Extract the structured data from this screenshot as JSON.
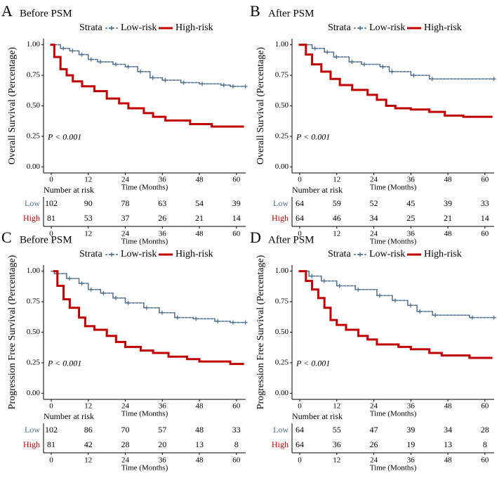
{
  "chart_data": [
    {
      "type": "line",
      "panel": "A",
      "title": "Before PSM",
      "legend_title": "Strata",
      "ylabel": "Overall Survival (Percentage)",
      "xlabel": "Time (Months)",
      "annotation": "P < 0.001",
      "xlim": [
        -2.5,
        63
      ],
      "xticks": [
        0,
        12,
        24,
        36,
        48,
        60
      ],
      "ylim": [
        -0.05,
        1.05
      ],
      "yticks": [
        {
          "value": 0,
          "label": "0.00"
        },
        {
          "value": 0.25,
          "label": "0.25"
        },
        {
          "value": 0.5,
          "label": "0.50"
        },
        {
          "value": 0.75,
          "label": "0.75"
        },
        {
          "value": 1,
          "label": "1.00"
        }
      ],
      "series": [
        {
          "name": "Low-risk",
          "color": "#4e6f8f",
          "x": [
            0,
            3,
            6,
            9,
            12,
            15,
            20,
            24,
            28,
            32,
            36,
            42,
            48,
            55,
            58,
            62
          ],
          "values": [
            1,
            0.97,
            0.95,
            0.92,
            0.88,
            0.86,
            0.84,
            0.82,
            0.78,
            0.73,
            0.71,
            0.69,
            0.68,
            0.67,
            0.66,
            0.66
          ]
        },
        {
          "name": "High-risk",
          "color": "#c00000",
          "x": [
            0,
            1,
            3,
            5,
            7,
            10,
            14,
            18,
            22,
            25,
            30,
            33,
            37,
            45,
            52,
            62
          ],
          "values": [
            1,
            0.9,
            0.8,
            0.75,
            0.7,
            0.66,
            0.62,
            0.56,
            0.52,
            0.48,
            0.44,
            0.41,
            0.38,
            0.35,
            0.33,
            0.33
          ]
        }
      ],
      "risk_table": {
        "title": "Number at risk",
        "rows": [
          {
            "name": "Low",
            "color": "#4e6f8f",
            "values": [
              102,
              90,
              78,
              63,
              54,
              39
            ]
          },
          {
            "name": "High",
            "color": "#c00000",
            "values": [
              81,
              53,
              37,
              26,
              21,
              14
            ]
          }
        ]
      }
    },
    {
      "type": "line",
      "panel": "B",
      "title": "After PSM",
      "legend_title": "Strata",
      "ylabel": "Overall Survival (Percentage)",
      "xlabel": "Time (Months)",
      "annotation": "P < 0.001",
      "xlim": [
        -2.5,
        63
      ],
      "xticks": [
        0,
        12,
        24,
        36,
        48,
        60
      ],
      "ylim": [
        -0.05,
        1.05
      ],
      "yticks": [
        {
          "value": 0,
          "label": "0.00"
        },
        {
          "value": 0.25,
          "label": "0.25"
        },
        {
          "value": 0.5,
          "label": "0.50"
        },
        {
          "value": 0.75,
          "label": "0.75"
        },
        {
          "value": 1,
          "label": "1.00"
        }
      ],
      "series": [
        {
          "name": "Low-risk",
          "color": "#4e6f8f",
          "x": [
            0,
            4,
            8,
            11,
            16,
            20,
            26,
            29,
            36,
            42,
            62
          ],
          "values": [
            1,
            0.97,
            0.94,
            0.9,
            0.86,
            0.84,
            0.82,
            0.78,
            0.75,
            0.72,
            0.72
          ]
        },
        {
          "name": "High-risk",
          "color": "#c00000",
          "x": [
            0,
            2,
            4,
            7,
            10,
            13,
            17,
            22,
            25,
            28,
            31,
            36,
            42,
            47,
            53,
            62
          ],
          "values": [
            1,
            0.92,
            0.84,
            0.78,
            0.72,
            0.67,
            0.63,
            0.59,
            0.55,
            0.5,
            0.48,
            0.47,
            0.45,
            0.42,
            0.41,
            0.41
          ]
        }
      ],
      "risk_table": {
        "title": "Number at risk",
        "rows": [
          {
            "name": "Low",
            "color": "#4e6f8f",
            "values": [
              64,
              59,
              52,
              45,
              39,
              33
            ]
          },
          {
            "name": "High",
            "color": "#c00000",
            "values": [
              64,
              46,
              34,
              25,
              21,
              14
            ]
          }
        ]
      }
    },
    {
      "type": "line",
      "panel": "C",
      "title": "Before PSM",
      "legend_title": "Strata",
      "ylabel": "Progression Free Survival (Percentage)",
      "xlabel": "Time (Months)",
      "annotation": "P < 0.001",
      "xlim": [
        -2.5,
        63
      ],
      "xticks": [
        0,
        12,
        24,
        36,
        48,
        60
      ],
      "ylim": [
        -0.05,
        1.05
      ],
      "yticks": [
        {
          "value": 0,
          "label": "0.00"
        },
        {
          "value": 0.25,
          "label": "0.25"
        },
        {
          "value": 0.5,
          "label": "0.50"
        },
        {
          "value": 0.75,
          "label": "0.75"
        },
        {
          "value": 1,
          "label": "1.00"
        }
      ],
      "series": [
        {
          "name": "Low-risk",
          "color": "#4e6f8f",
          "x": [
            0,
            1,
            5,
            9,
            12,
            16,
            20,
            24,
            30,
            35,
            40,
            46,
            53,
            58,
            62
          ],
          "values": [
            1,
            0.98,
            0.94,
            0.9,
            0.85,
            0.82,
            0.78,
            0.74,
            0.7,
            0.66,
            0.62,
            0.61,
            0.59,
            0.58,
            0.58
          ]
        },
        {
          "name": "High-risk",
          "color": "#c00000",
          "x": [
            1,
            2,
            4,
            6,
            9,
            11,
            14,
            18,
            21,
            24,
            29,
            33,
            38,
            44,
            48,
            58,
            62
          ],
          "values": [
            1,
            0.88,
            0.77,
            0.7,
            0.62,
            0.55,
            0.52,
            0.47,
            0.42,
            0.38,
            0.35,
            0.33,
            0.3,
            0.28,
            0.26,
            0.24,
            0.24
          ]
        }
      ],
      "risk_table": {
        "title": "Number at risk",
        "rows": [
          {
            "name": "Low",
            "color": "#4e6f8f",
            "values": [
              102,
              86,
              70,
              57,
              48,
              33
            ]
          },
          {
            "name": "High",
            "color": "#c00000",
            "values": [
              81,
              42,
              28,
              20,
              13,
              8
            ]
          }
        ]
      }
    },
    {
      "type": "line",
      "panel": "D",
      "title": "After PSM",
      "legend_title": "Strata",
      "ylabel": "Progression Free Survival (Percentage)",
      "xlabel": "Time (Months)",
      "annotation": "P < 0.001",
      "xlim": [
        -2.5,
        63
      ],
      "xticks": [
        0,
        12,
        24,
        36,
        48,
        60
      ],
      "ylim": [
        -0.05,
        1.05
      ],
      "yticks": [
        {
          "value": 0,
          "label": "0.00"
        },
        {
          "value": 0.25,
          "label": "0.25"
        },
        {
          "value": 0.5,
          "label": "0.50"
        },
        {
          "value": 0.75,
          "label": "0.75"
        },
        {
          "value": 1,
          "label": "1.00"
        }
      ],
      "series": [
        {
          "name": "Low-risk",
          "color": "#4e6f8f",
          "x": [
            0,
            3,
            7,
            12,
            18,
            25,
            30,
            35,
            38,
            43,
            55,
            62
          ],
          "values": [
            1,
            0.96,
            0.92,
            0.88,
            0.85,
            0.8,
            0.76,
            0.72,
            0.67,
            0.64,
            0.62,
            0.62
          ]
        },
        {
          "name": "High-risk",
          "color": "#c00000",
          "x": [
            0,
            2,
            4,
            6,
            8,
            10,
            12,
            15,
            19,
            22,
            25,
            32,
            36,
            42,
            46,
            55,
            62
          ],
          "values": [
            1,
            0.92,
            0.85,
            0.78,
            0.7,
            0.6,
            0.56,
            0.52,
            0.47,
            0.44,
            0.4,
            0.38,
            0.36,
            0.33,
            0.31,
            0.29,
            0.29
          ]
        }
      ],
      "risk_table": {
        "title": "Number at risk",
        "rows": [
          {
            "name": "Low",
            "color": "#4e6f8f",
            "values": [
              64,
              55,
              47,
              39,
              34,
              28
            ]
          },
          {
            "name": "High",
            "color": "#c00000",
            "values": [
              64,
              36,
              26,
              19,
              13,
              8
            ]
          }
        ]
      }
    }
  ]
}
